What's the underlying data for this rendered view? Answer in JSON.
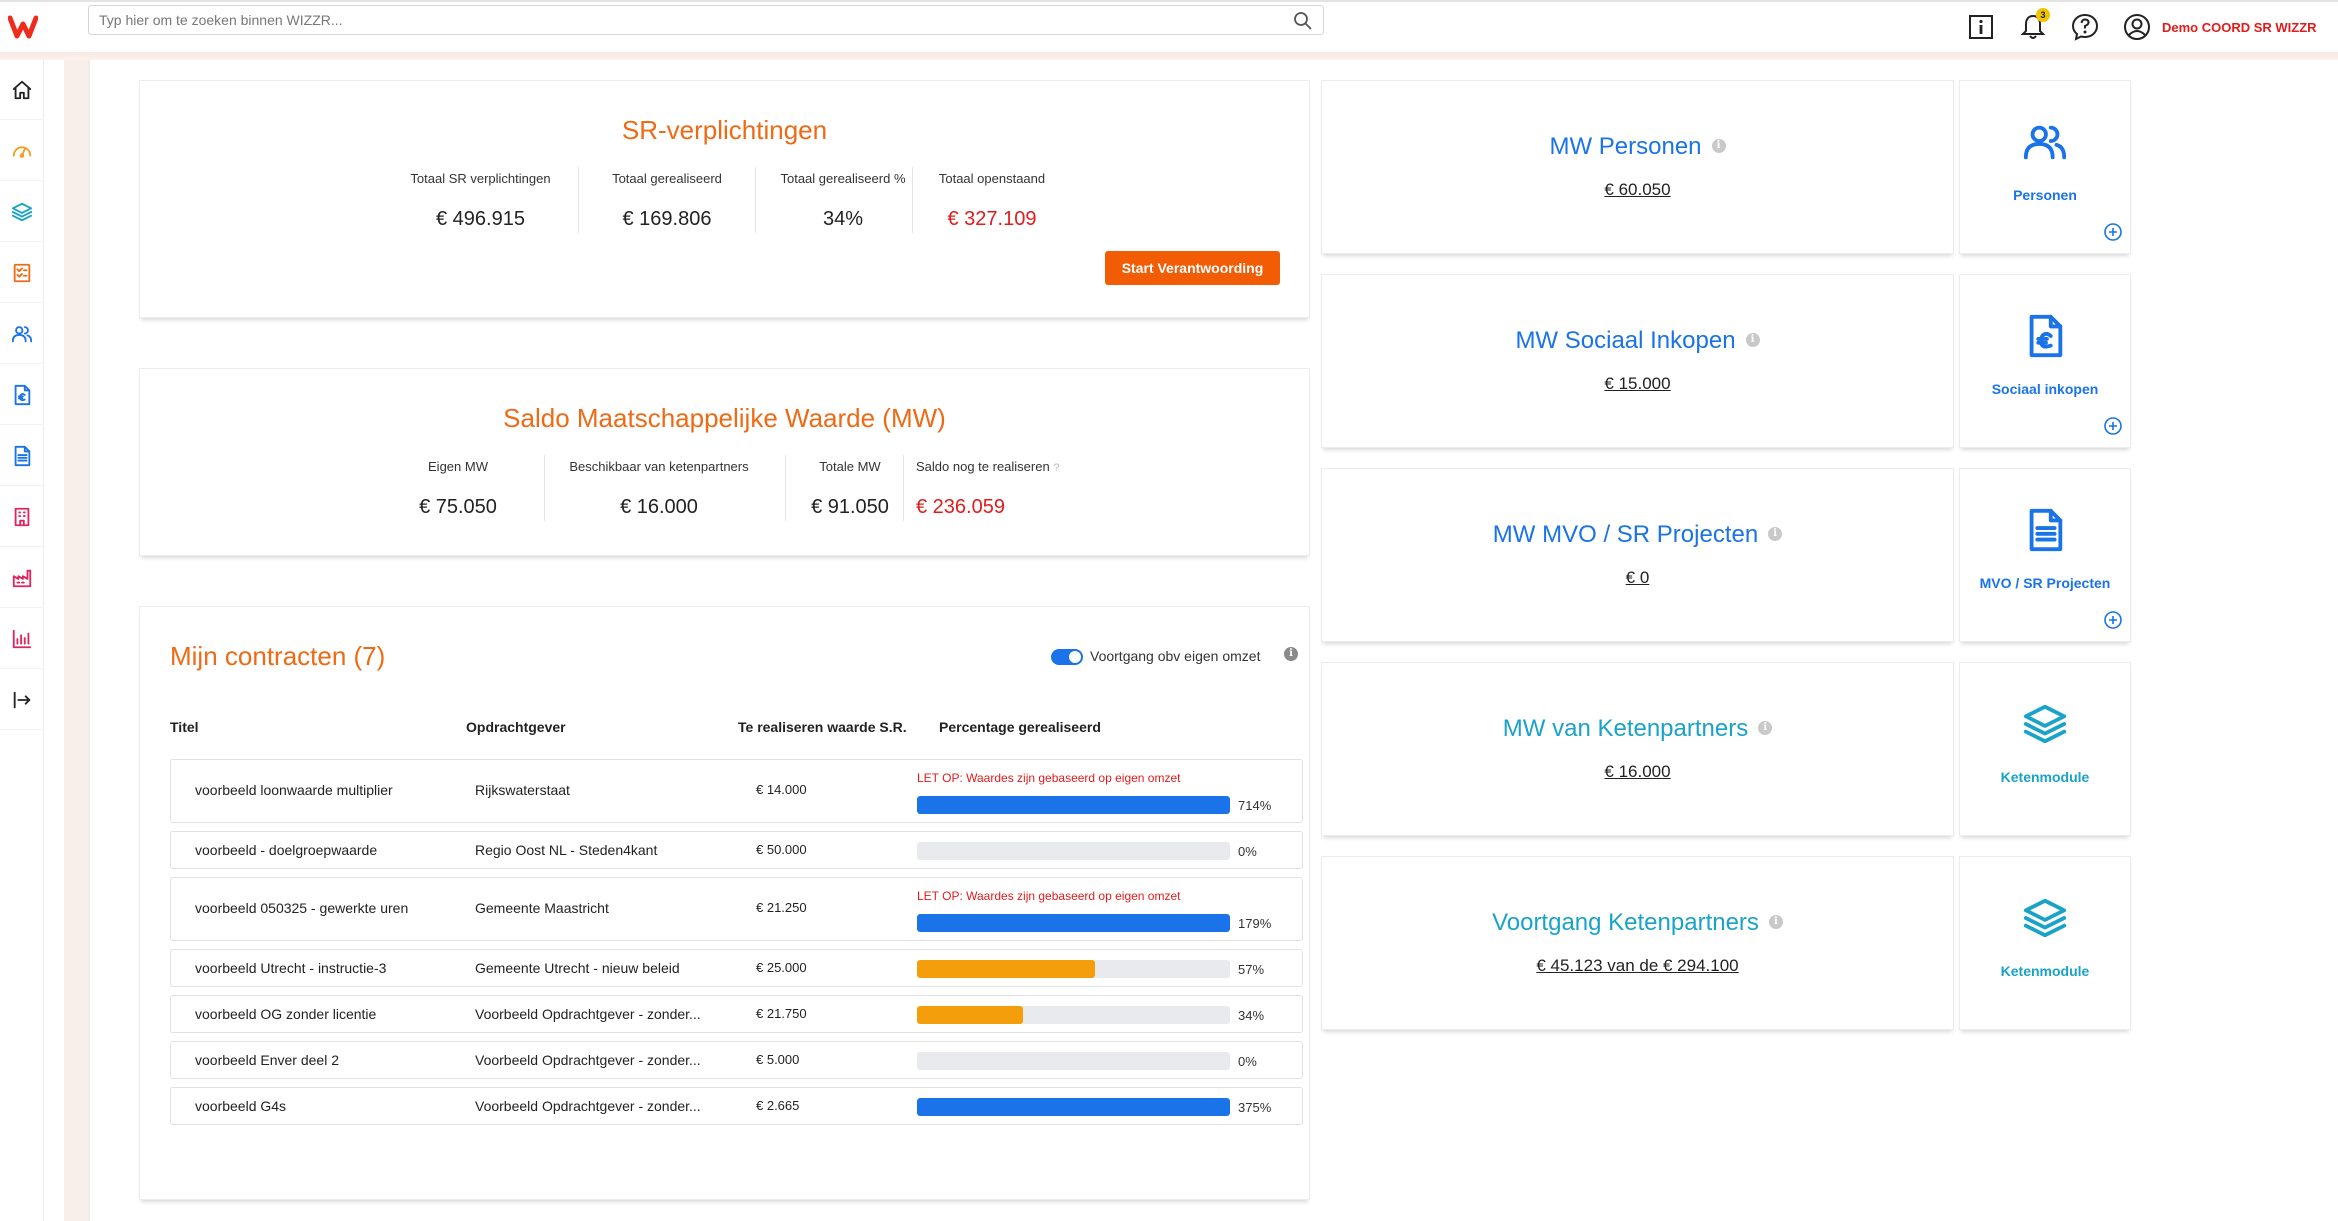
{
  "topbar": {
    "search_placeholder": "Typ hier om te zoeken binnen WIZZR...",
    "notification_count": "3",
    "user_name": "Demo COORD SR WIZZR",
    "icons": [
      "info-icon",
      "bell-icon",
      "help-icon",
      "user-icon"
    ]
  },
  "sidebar": {
    "items": [
      {
        "icon": "home-icon",
        "color": "#222222"
      },
      {
        "icon": "dashboard-gauge-icon",
        "color": "#f0a020"
      },
      {
        "icon": "layers-icon",
        "color": "#1aa3c8"
      },
      {
        "icon": "checklist-icon",
        "color": "#ef6a15"
      },
      {
        "icon": "people-icon",
        "color": "#1a73e8"
      },
      {
        "icon": "euro-document-icon",
        "color": "#1a73e8"
      },
      {
        "icon": "document-icon",
        "color": "#1a73e8"
      },
      {
        "icon": "building-icon",
        "color": "#e0245e"
      },
      {
        "icon": "factory-icon",
        "color": "#e0245e"
      },
      {
        "icon": "bar-chart-icon",
        "color": "#e0245e"
      },
      {
        "icon": "logout-icon",
        "color": "#222222"
      }
    ]
  },
  "sr_verplichtingen": {
    "title": "SR-verplichtingen",
    "stats": [
      {
        "label": "Totaal SR verplichtingen",
        "value": "€ 496.915"
      },
      {
        "label": "Totaal gerealiseerd",
        "value": "€ 169.806"
      },
      {
        "label": "Totaal gerealiseerd %",
        "value": "34%"
      },
      {
        "label": "Totaal openstaand",
        "value": "€ 327.109"
      }
    ],
    "button": "Start Verantwoording"
  },
  "saldo": {
    "title": "Saldo Maatschappelijke Waarde (MW)",
    "stats": [
      {
        "label": "Eigen MW",
        "value": "€ 75.050"
      },
      {
        "label": "Beschikbaar van ketenpartners",
        "value": "€ 16.000"
      },
      {
        "label": "Totale MW",
        "value": "€ 91.050"
      },
      {
        "label": "Saldo nog te realiseren",
        "value": "€ 236.059"
      }
    ]
  },
  "contracts": {
    "title": "Mijn contracten (7)",
    "toggle_label": "Voortgang obv eigen omzet",
    "columns": [
      "Titel",
      "Opdrachtgever",
      "Te realiseren waarde S.R.",
      "Percentage gerealiseerd"
    ],
    "warning_text": "LET OP: Waardes zijn gebaseerd op eigen omzet",
    "rows": [
      {
        "title": "voorbeeld loonwaarde multiplier",
        "client": "Rijkswaterstaat",
        "value": "€ 14.000",
        "pct": "714%",
        "fill": 1.0,
        "color": "#1a73e8",
        "warning": true
      },
      {
        "title": "voorbeeld - doelgroepwaarde",
        "client": "Regio Oost NL - Steden4kant",
        "value": "€ 50.000",
        "pct": "0%",
        "fill": 0.0,
        "color": "#1a73e8",
        "warning": false
      },
      {
        "title": "voorbeeld 050325 - gewerkte uren",
        "client": "Gemeente Maastricht",
        "value": "€ 21.250",
        "pct": "179%",
        "fill": 1.0,
        "color": "#1a73e8",
        "warning": true
      },
      {
        "title": "voorbeeld Utrecht - instructie-3",
        "client": "Gemeente Utrecht - nieuw beleid",
        "value": "€ 25.000",
        "pct": "57%",
        "fill": 0.57,
        "color": "#f59e0b",
        "warning": false
      },
      {
        "title": "voorbeeld OG zonder licentie",
        "client": "Voorbeeld Opdrachtgever - zonder...",
        "value": "€ 21.750",
        "pct": "34%",
        "fill": 0.34,
        "color": "#f59e0b",
        "warning": false
      },
      {
        "title": "voorbeeld Enver deel 2",
        "client": "Voorbeeld Opdrachtgever - zonder...",
        "value": "€ 5.000",
        "pct": "0%",
        "fill": 0.0,
        "color": "#1a73e8",
        "warning": false
      },
      {
        "title": "voorbeeld G4s",
        "client": "Voorbeeld Opdrachtgever - zonder...",
        "value": "€ 2.665",
        "pct": "375%",
        "fill": 1.0,
        "color": "#1a73e8",
        "warning": false
      }
    ]
  },
  "mw_cards": [
    {
      "title": "MW Personen",
      "value": "€ 60.050",
      "color": "#1a73e8"
    },
    {
      "title": "MW Sociaal Inkopen",
      "value": "€ 15.000",
      "color": "#1a73e8"
    },
    {
      "title": "MW MVO / SR Projecten",
      "value": "€ 0",
      "color": "#1a73e8"
    },
    {
      "title": "MW van Ketenpartners",
      "value": "€ 16.000",
      "color": "#1aa3c8"
    },
    {
      "title": "Voortgang Ketenpartners",
      "value": "€ 45.123 van de € 294.100",
      "color": "#1aa3c8"
    }
  ],
  "module_cards": [
    {
      "label": "Personen",
      "icon": "people-icon",
      "color": "#1a73e8",
      "plus": true
    },
    {
      "label": "Sociaal inkopen",
      "icon": "euro-document-icon",
      "color": "#1a73e8",
      "plus": true
    },
    {
      "label": "MVO / SR Projecten",
      "icon": "document-icon",
      "color": "#1a73e8",
      "plus": true
    },
    {
      "label": "Ketenmodule",
      "icon": "layers-icon",
      "color": "#1aa3c8",
      "plus": false
    },
    {
      "label": "Ketenmodule",
      "icon": "layers-icon",
      "color": "#1aa3c8",
      "plus": false
    }
  ]
}
